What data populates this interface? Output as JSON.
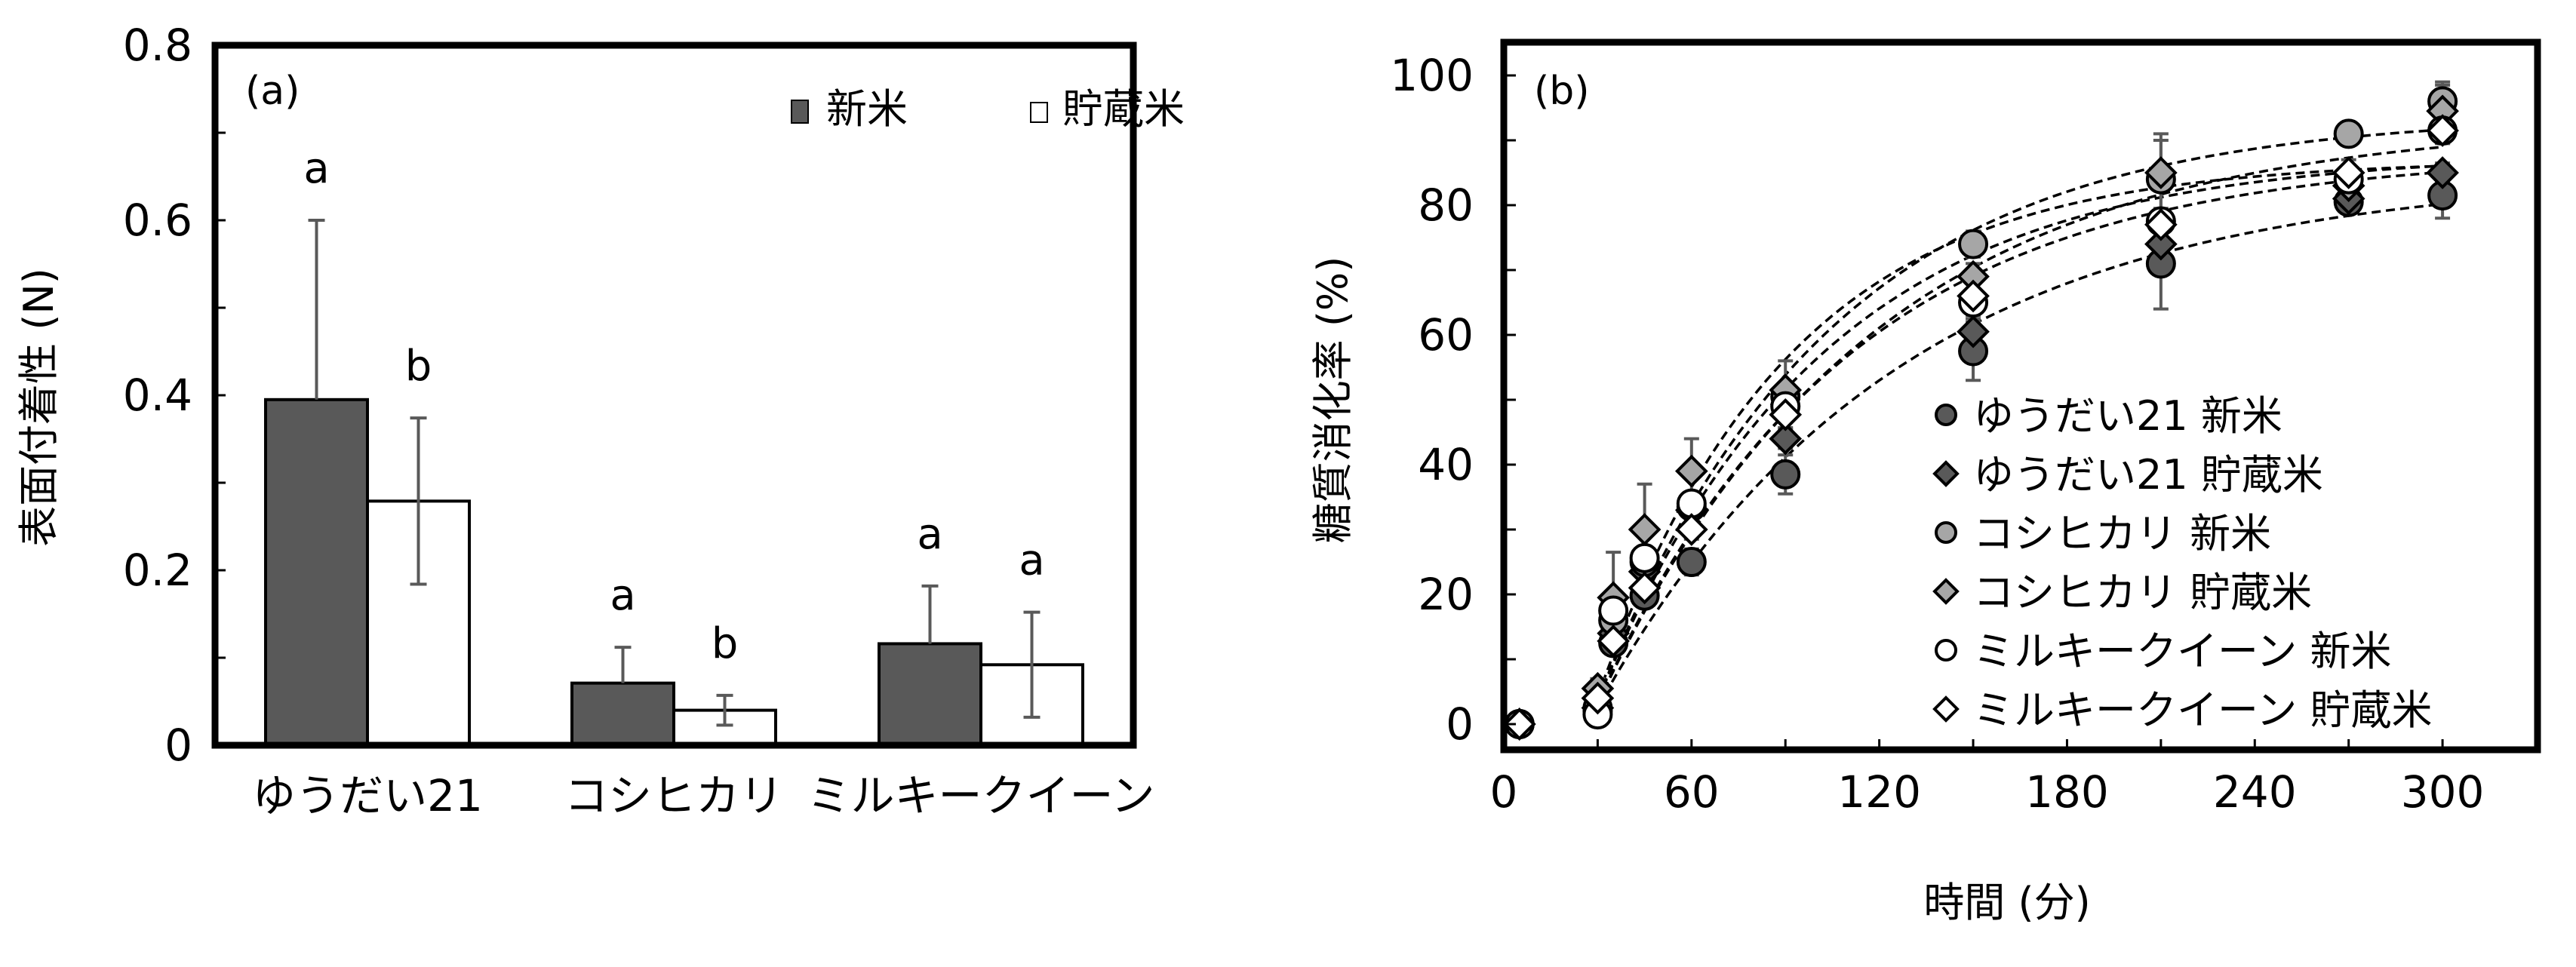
{
  "figure": {
    "panel_a_label": "(a)",
    "panel_b_label": "(b)"
  },
  "colors": {
    "new_rice_bar": "#595959",
    "stored_rice_bar": "#ffffff",
    "yudai21": "#595959",
    "koshihikari": "#a6a6a6",
    "milky_queen": "#ffffff",
    "error_bar": "#595959",
    "axis": "#000000"
  },
  "chart_data": [
    {
      "type": "bar",
      "title": "(a)",
      "xlabel": "",
      "ylabel": "表面付着性 (N)",
      "ylim": [
        0,
        0.8
      ],
      "yticks": [
        0,
        0.2,
        0.4,
        0.6,
        0.8
      ],
      "ytick_labels": [
        "0",
        "0.2",
        "0.4",
        "0.6",
        "0.8"
      ],
      "minor_yticks": [
        0.1,
        0.3,
        0.5,
        0.7
      ],
      "categories": [
        "ゆうだい21",
        "コシヒカリ",
        "ミルキークイーン"
      ],
      "legend_position": "upper right",
      "series": [
        {
          "name": "新米",
          "color": "#595959",
          "values": [
            0.395,
            0.071,
            0.116
          ],
          "error": [
            0.205,
            0.041,
            0.066
          ],
          "letters": [
            "a",
            "a",
            "a"
          ]
        },
        {
          "name": "貯蔵米",
          "color": "#ffffff",
          "values": [
            0.279,
            0.04,
            0.092
          ],
          "error": [
            0.095,
            0.017,
            0.06
          ],
          "letters": [
            "b",
            "b",
            "a"
          ]
        }
      ]
    },
    {
      "type": "scatter",
      "title": "(b)",
      "xlabel": "時間 (分)",
      "ylabel": "糖質消化率 (%)",
      "xlim": [
        0,
        330
      ],
      "ylim": [
        -5,
        105
      ],
      "xticks": [
        0,
        60,
        120,
        180,
        240,
        300
      ],
      "minor_xticks": [
        30,
        90,
        150,
        210,
        270
      ],
      "yticks": [
        0,
        20,
        40,
        60,
        80,
        100
      ],
      "minor_yticks": [
        10,
        30,
        50,
        70,
        90
      ],
      "fit_lines": "dashed, first-order kinetic fit per series",
      "legend_position": "lower right",
      "x": [
        5,
        30,
        35,
        45,
        60,
        90,
        150,
        210,
        270,
        300
      ],
      "series": [
        {
          "name": "ゆうだい21 新米",
          "marker": "circle",
          "color": "#595959",
          "values": [
            0,
            2,
            12.5,
            19.8,
            25,
            38.5,
            57.5,
            71,
            80.5,
            81.5
          ],
          "error": [
            0,
            1,
            1,
            1.5,
            2,
            3,
            4.5,
            7,
            1.5,
            3.5
          ],
          "fit": {
            "a": 85,
            "k": 0.0105,
            "t0": 27
          }
        },
        {
          "name": "ゆうだい21 貯蔵米",
          "marker": "diamond",
          "color": "#595959",
          "values": [
            0,
            2.5,
            14,
            23.5,
            33,
            44,
            60.5,
            74,
            81,
            85
          ],
          "error": [
            0,
            1,
            1,
            1.5,
            2,
            1.5,
            2,
            2,
            2,
            1.5
          ],
          "fit": {
            "a": 88,
            "k": 0.0125,
            "t0": 27
          }
        },
        {
          "name": "コシヒカリ 新米",
          "marker": "circle",
          "color": "#a6a6a6",
          "values": [
            0,
            2.5,
            16,
            25,
            33.5,
            50.5,
            74,
            84,
            91,
            96
          ],
          "error": [
            0,
            1,
            1,
            1.5,
            1.5,
            2,
            2,
            6,
            1,
            3
          ],
          "fit": {
            "a": 94,
            "k": 0.0135,
            "t0": 27
          }
        },
        {
          "name": "コシヒカリ 貯蔵米",
          "marker": "diamond",
          "color": "#a6a6a6",
          "values": [
            0,
            5.5,
            19.5,
            30,
            39,
            51.5,
            69,
            85,
            83,
            94.5
          ],
          "error": [
            0,
            1.5,
            7,
            7,
            5,
            4.5,
            2,
            6,
            3,
            4
          ],
          "fit": {
            "a": 87,
            "k": 0.0165,
            "t0": 27
          }
        },
        {
          "name": "ミルキークイーン 新米",
          "marker": "circle",
          "color": "#ffffff",
          "values": [
            0,
            1.5,
            17.5,
            25.6,
            34,
            49,
            65,
            77.5,
            84,
            91.5
          ],
          "error": [
            0,
            1,
            1,
            1.5,
            1.5,
            2,
            2,
            2,
            2,
            2
          ],
          "fit": {
            "a": 93,
            "k": 0.0115,
            "t0": 27
          }
        },
        {
          "name": "ミルキークイーン 貯蔵米",
          "marker": "diamond",
          "color": "#ffffff",
          "values": [
            0,
            4,
            12.8,
            21,
            30,
            47.7,
            66,
            77,
            85,
            91.5
          ],
          "error": [
            0,
            1,
            1,
            1.5,
            1.5,
            2,
            2,
            2,
            2,
            2
          ],
          "fit": {
            "a": 88,
            "k": 0.014,
            "t0": 27
          }
        }
      ]
    }
  ]
}
